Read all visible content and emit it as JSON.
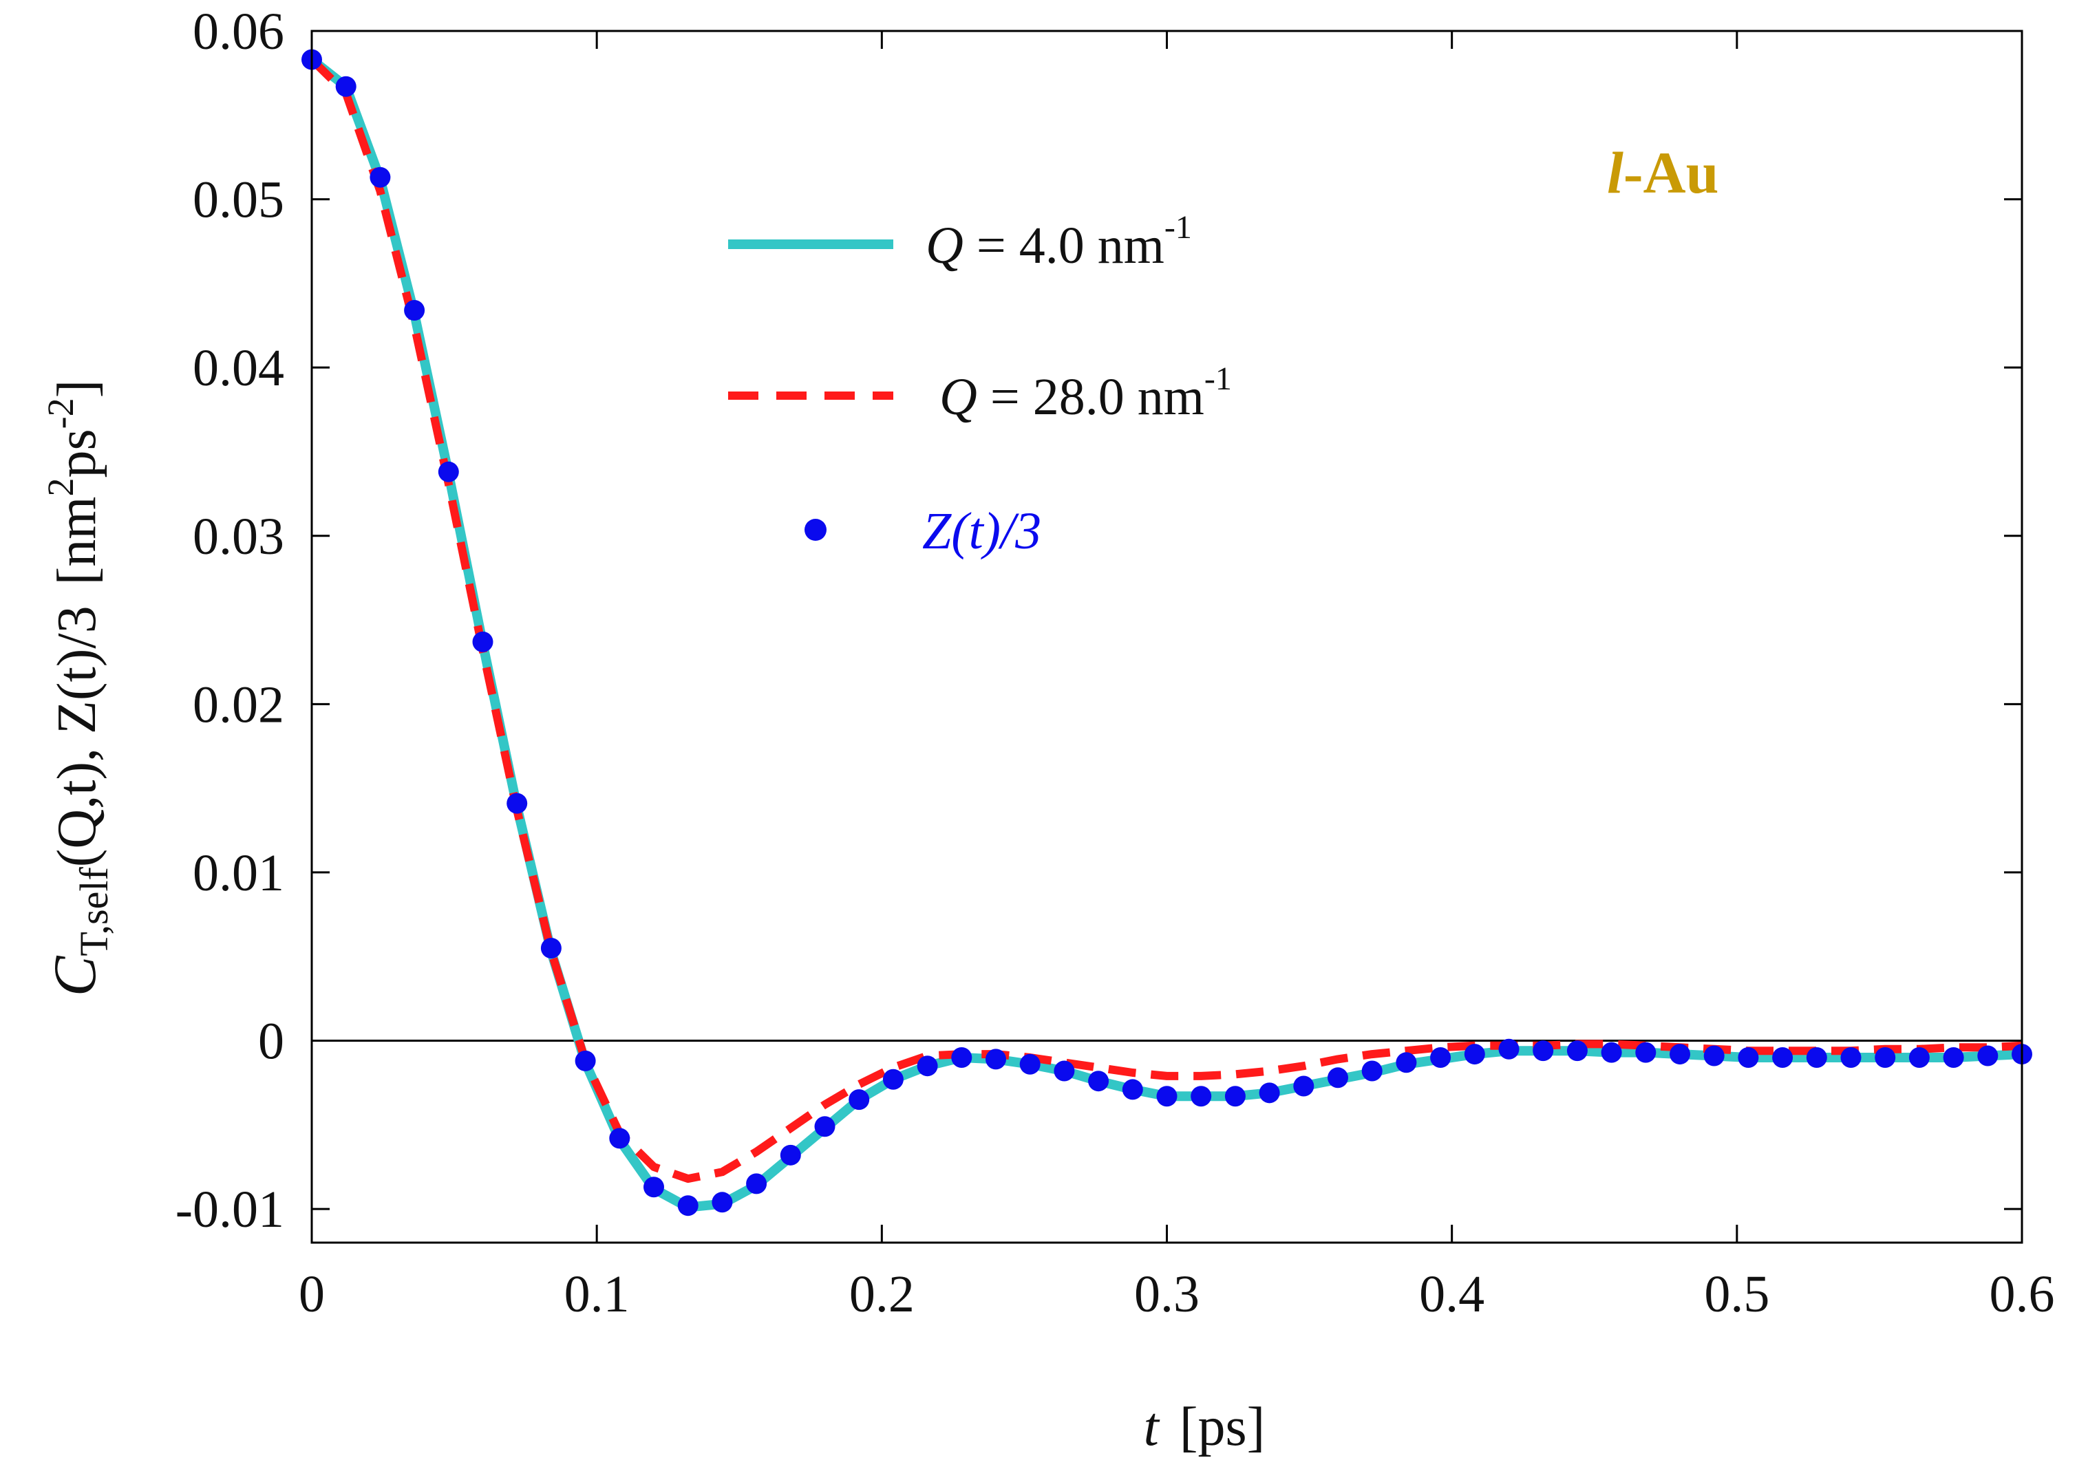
{
  "chart_data": {
    "type": "line",
    "annotation": {
      "italic_part": "l",
      "rest": "-Au",
      "color": "#C99A06"
    },
    "xlabel": {
      "var": "t",
      "unit": "[ps]"
    },
    "ylabel": {
      "c": "C",
      "c_sub": "T,self",
      "args": "(Q,t), Z(t)/3",
      "unit_base": "[nm",
      "unit_exp1": "2",
      "unit_mid": "ps",
      "unit_exp2": "-2",
      "unit_end": "]"
    },
    "xlim": [
      0,
      0.6
    ],
    "ylim": [
      -0.012,
      0.06
    ],
    "xticks": [
      0,
      0.1,
      0.2,
      0.3,
      0.4,
      0.5,
      0.6
    ],
    "xtick_labels": [
      "0",
      "0.1",
      "0.2",
      "0.3",
      "0.4",
      "0.5",
      "0.6"
    ],
    "yticks": [
      -0.01,
      0,
      0.01,
      0.02,
      0.03,
      0.04,
      0.05,
      0.06
    ],
    "ytick_labels": [
      "-0.01",
      "0",
      "0.01",
      "0.02",
      "0.03",
      "0.04",
      "0.05",
      "0.06"
    ],
    "zero_line": true,
    "legend_position": "upper-center",
    "series": [
      {
        "name": "Q = 4.0 nm-1",
        "legend": {
          "var": "Q",
          "text": " = 4.0 nm",
          "exp": "-1"
        },
        "style": "solid",
        "color": "#33C6C6",
        "x": [
          0,
          0.012,
          0.024,
          0.036,
          0.048,
          0.06,
          0.072,
          0.084,
          0.096,
          0.108,
          0.12,
          0.132,
          0.144,
          0.156,
          0.168,
          0.18,
          0.192,
          0.204,
          0.216,
          0.228,
          0.24,
          0.252,
          0.264,
          0.276,
          0.288,
          0.3,
          0.312,
          0.324,
          0.336,
          0.348,
          0.36,
          0.372,
          0.384,
          0.396,
          0.408,
          0.42,
          0.432,
          0.444,
          0.456,
          0.468,
          0.48,
          0.492,
          0.504,
          0.516,
          0.528,
          0.54,
          0.552,
          0.564,
          0.576,
          0.588,
          0.6
        ],
        "y": [
          0.0583,
          0.0567,
          0.0512,
          0.0432,
          0.0337,
          0.0236,
          0.0139,
          0.0053,
          -0.0013,
          -0.0059,
          -0.0088,
          -0.0099,
          -0.0097,
          -0.0086,
          -0.0069,
          -0.0052,
          -0.0035,
          -0.0023,
          -0.0015,
          -0.001,
          -0.0011,
          -0.0014,
          -0.0018,
          -0.0024,
          -0.0029,
          -0.0033,
          -0.0033,
          -0.0033,
          -0.0031,
          -0.0027,
          -0.0023,
          -0.0019,
          -0.0014,
          -0.0011,
          -0.0008,
          -0.0006,
          -0.0006,
          -0.0006,
          -0.0007,
          -0.0007,
          -0.0008,
          -0.0009,
          -0.001,
          -0.001,
          -0.001,
          -0.001,
          -0.001,
          -0.001,
          -0.001,
          -0.0009,
          -0.0008
        ]
      },
      {
        "name": "Q = 28.0 nm-1",
        "legend": {
          "var": "Q",
          "text": " = 28.0 nm",
          "exp": "-1"
        },
        "style": "dashed",
        "color": "#FF1A1A",
        "x": [
          0,
          0.012,
          0.024,
          0.036,
          0.048,
          0.06,
          0.072,
          0.084,
          0.096,
          0.108,
          0.12,
          0.132,
          0.144,
          0.156,
          0.168,
          0.18,
          0.192,
          0.204,
          0.216,
          0.228,
          0.24,
          0.252,
          0.264,
          0.276,
          0.288,
          0.3,
          0.312,
          0.324,
          0.336,
          0.348,
          0.36,
          0.372,
          0.384,
          0.396,
          0.408,
          0.42,
          0.432,
          0.444,
          0.456,
          0.468,
          0.48,
          0.492,
          0.504,
          0.516,
          0.528,
          0.54,
          0.552,
          0.564,
          0.576,
          0.588,
          0.6
        ],
        "y": [
          0.0583,
          0.0563,
          0.0505,
          0.0425,
          0.0331,
          0.0232,
          0.0137,
          0.0053,
          -0.0012,
          -0.0055,
          -0.0075,
          -0.0082,
          -0.0078,
          -0.0066,
          -0.0052,
          -0.0038,
          -0.0026,
          -0.0016,
          -0.0009,
          -0.0008,
          -0.0008,
          -0.001,
          -0.0013,
          -0.0016,
          -0.0019,
          -0.0021,
          -0.0021,
          -0.002,
          -0.0018,
          -0.0015,
          -0.0011,
          -0.0008,
          -0.0006,
          -0.0004,
          -0.0003,
          -0.0003,
          -0.0003,
          -0.0002,
          -0.0002,
          -0.0003,
          -0.0004,
          -0.0005,
          -0.0006,
          -0.0006,
          -0.0006,
          -0.0006,
          -0.0005,
          -0.0005,
          -0.0004,
          -0.0004,
          -0.0003
        ]
      },
      {
        "name": "Z(t)/3",
        "legend": {
          "text": "Z(t)/3"
        },
        "style": "markers",
        "color": "#0A0AEE",
        "x": [
          0,
          0.012,
          0.024,
          0.036,
          0.048,
          0.06,
          0.072,
          0.084,
          0.096,
          0.108,
          0.12,
          0.132,
          0.144,
          0.156,
          0.168,
          0.18,
          0.192,
          0.204,
          0.216,
          0.228,
          0.24,
          0.252,
          0.264,
          0.276,
          0.288,
          0.3,
          0.312,
          0.324,
          0.336,
          0.348,
          0.36,
          0.372,
          0.384,
          0.396,
          0.408,
          0.42,
          0.432,
          0.444,
          0.456,
          0.468,
          0.48,
          0.492,
          0.504,
          0.516,
          0.528,
          0.54,
          0.552,
          0.564,
          0.576,
          0.588,
          0.6
        ],
        "y": [
          0.0583,
          0.0567,
          0.0513,
          0.0434,
          0.0338,
          0.0237,
          0.0141,
          0.0055,
          -0.0012,
          -0.0058,
          -0.0087,
          -0.0098,
          -0.0096,
          -0.0085,
          -0.0068,
          -0.0051,
          -0.0035,
          -0.0023,
          -0.0015,
          -0.001,
          -0.0011,
          -0.0014,
          -0.0018,
          -0.0024,
          -0.0029,
          -0.0033,
          -0.0033,
          -0.0033,
          -0.0031,
          -0.0027,
          -0.0022,
          -0.0018,
          -0.0013,
          -0.001,
          -0.0008,
          -0.0005,
          -0.0006,
          -0.0006,
          -0.0007,
          -0.0007,
          -0.0008,
          -0.0009,
          -0.001,
          -0.001,
          -0.001,
          -0.001,
          -0.001,
          -0.001,
          -0.001,
          -0.0009,
          -0.0008
        ]
      }
    ]
  }
}
